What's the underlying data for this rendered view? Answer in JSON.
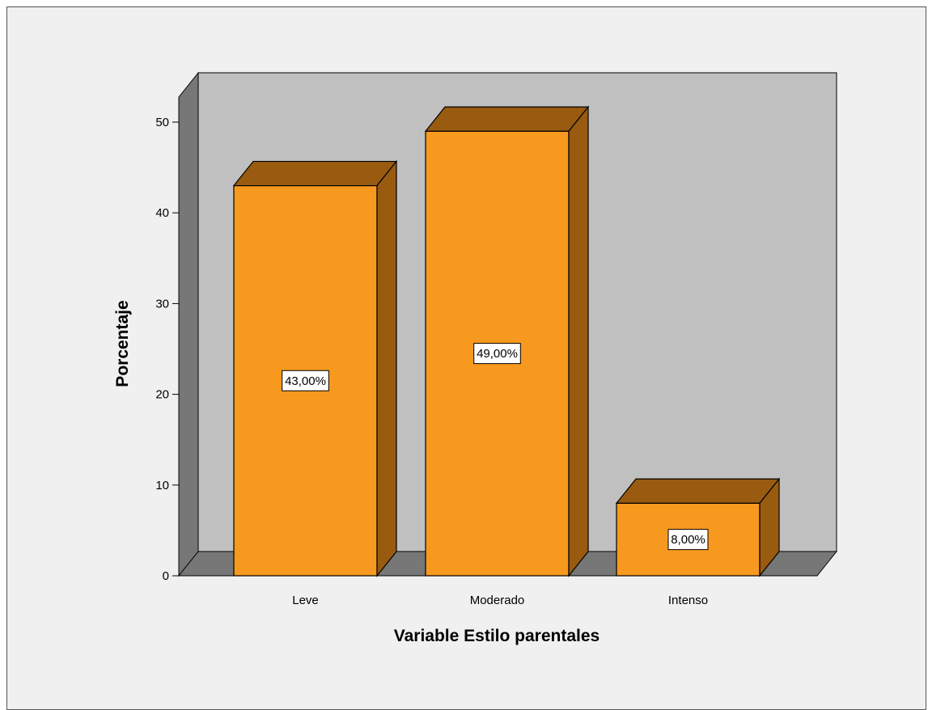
{
  "chart_data": {
    "type": "bar",
    "style": "3d",
    "categories": [
      "Leve",
      "Moderado",
      "Intenso"
    ],
    "values": [
      43,
      49,
      8
    ],
    "data_labels": [
      "43,00%",
      "49,00%",
      "8,00%"
    ],
    "xlabel": "Variable Estilo parentales",
    "ylabel": "Porcentaje",
    "ylim": [
      0,
      50
    ],
    "yticks": [
      0,
      10,
      20,
      30,
      40,
      50
    ],
    "grid": false,
    "legend": "none",
    "colors": {
      "bar_front": "#f7991e",
      "bar_side": "#995b10",
      "wall_back": "#c0c0c0",
      "wall_dark": "#777777",
      "background": "#f0f0f0"
    }
  }
}
